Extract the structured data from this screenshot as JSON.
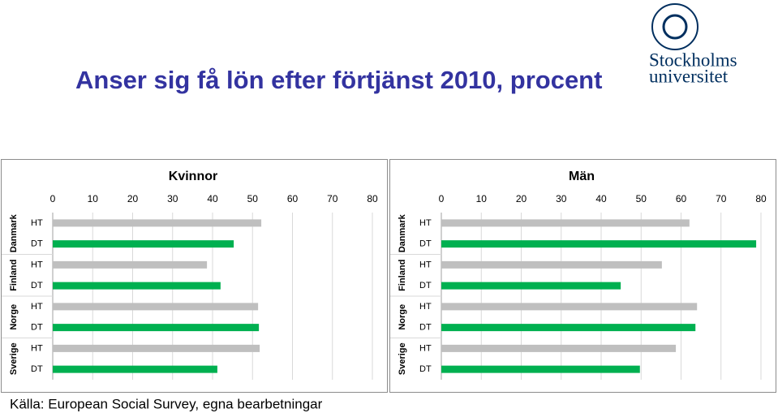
{
  "page_title": "Anser sig få lön efter förtjänst 2010, procent",
  "logo": {
    "line1": "Stockholms",
    "line2": "universitet"
  },
  "source": "Källa: European Social Survey, egna bearbetningar",
  "chart_data": [
    {
      "type": "bar",
      "orientation": "horizontal",
      "title": "Kvinnor",
      "groups": [
        "Danmark",
        "Finland",
        "Norge",
        "Sverige"
      ],
      "categories": [
        "HT",
        "DT",
        "HT",
        "DT",
        "HT",
        "DT",
        "HT",
        "DT"
      ],
      "values": [
        52.2,
        45.3,
        38.6,
        42,
        51.4,
        51.6,
        51.8,
        41.2
      ],
      "colors": {
        "HT": "#bfbfbf",
        "DT": "#00b050"
      },
      "xlim": [
        0,
        80
      ],
      "xticks": [
        0,
        10,
        20,
        30,
        40,
        50,
        60,
        70,
        80
      ],
      "grid": true
    },
    {
      "type": "bar",
      "orientation": "horizontal",
      "title": "Män",
      "groups": [
        "Danmark",
        "Finland",
        "Norge",
        "Sverige"
      ],
      "categories": [
        "HT",
        "DT",
        "HT",
        "DT",
        "HT",
        "DT",
        "HT",
        "DT"
      ],
      "values": [
        62.1,
        78.8,
        55.2,
        44.9,
        64,
        63.6,
        58.7,
        49.7
      ],
      "colors": {
        "HT": "#bfbfbf",
        "DT": "#00b050"
      },
      "xlim": [
        0,
        80
      ],
      "xticks": [
        0,
        10,
        20,
        30,
        40,
        50,
        60,
        70,
        80
      ],
      "grid": true
    }
  ]
}
